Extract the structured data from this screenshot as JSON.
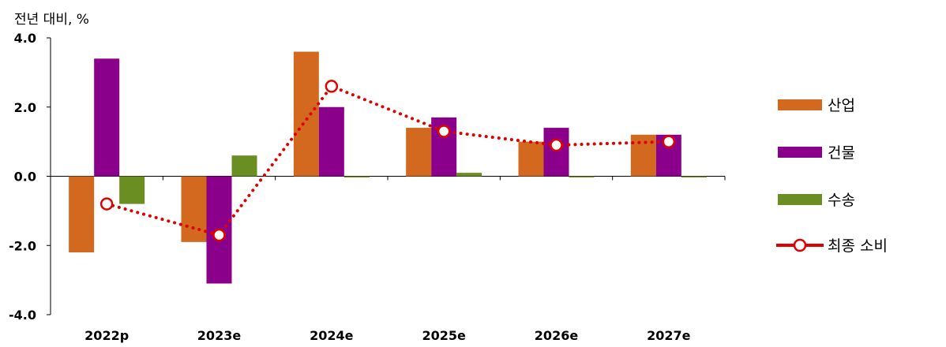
{
  "chart_data": {
    "type": "bar",
    "ylabel": "전년 대비, %",
    "xlabel": "",
    "title": "",
    "categories": [
      "2022p",
      "2023e",
      "2024e",
      "2025e",
      "2026e",
      "2027e"
    ],
    "series": [
      {
        "name": "산업",
        "type": "bar",
        "color": "#D2691E",
        "values": [
          -2.2,
          -1.9,
          3.6,
          1.4,
          1.0,
          1.2
        ]
      },
      {
        "name": "건물",
        "type": "bar",
        "color": "#8B008B",
        "values": [
          3.4,
          -3.1,
          2.0,
          1.7,
          1.4,
          1.2
        ]
      },
      {
        "name": "수송",
        "type": "bar",
        "color": "#6B8E23",
        "values": [
          -0.8,
          0.6,
          0.0,
          0.1,
          0.0,
          0.0
        ]
      },
      {
        "name": "최종 소비",
        "type": "line",
        "color": "#E00000",
        "values": [
          -0.8,
          -1.7,
          2.6,
          1.3,
          0.9,
          1.0
        ]
      }
    ],
    "y_ticks": [
      "4.0",
      "2.0",
      "0.0",
      "-2.0",
      "-4.0"
    ],
    "ylim": [
      -4,
      4
    ],
    "grid": false,
    "legend_position": "right"
  }
}
